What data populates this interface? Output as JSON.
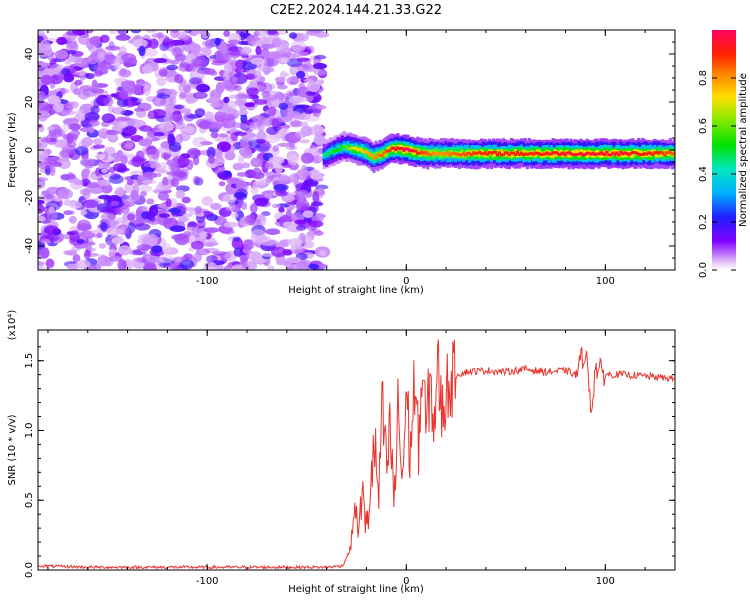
{
  "title": "C2E2.2024.144.21.33.G22",
  "chart_data": [
    {
      "type": "heatmap",
      "xlabel": "Height of straight line (km)",
      "ylabel": "Frequency (Hz)",
      "xlim": [
        -185,
        135
      ],
      "ylim": [
        -50,
        50
      ],
      "xticks": [
        -100,
        0,
        100
      ],
      "yticks": [
        -40,
        -20,
        0,
        20,
        40
      ],
      "colorbar": {
        "label": "Normalized spectral amplitude",
        "range": [
          0,
          1
        ],
        "ticks": [
          0.0,
          0.2,
          0.4,
          0.6,
          0.8
        ]
      },
      "noise_region_x": [
        -185,
        -42
      ],
      "signal_line": {
        "x": [
          -42,
          -38,
          -32,
          -27,
          -22,
          -17,
          -12,
          -8,
          -4,
          0,
          5,
          10,
          15,
          25,
          40,
          60,
          80,
          100,
          120,
          135
        ],
        "frequency": [
          -2.5,
          -0.5,
          1.5,
          0.5,
          -0.5,
          -3,
          -1.5,
          0.5,
          0.5,
          0,
          -1,
          -1.5,
          -1.5,
          -1.5,
          -1.5,
          -1.5,
          -1.5,
          -1.5,
          -1.5,
          -1.5
        ],
        "peak_amplitude": [
          0.45,
          0.5,
          0.55,
          0.7,
          0.75,
          0.8,
          0.85,
          0.9,
          0.95,
          1.0,
          0.9,
          0.85,
          0.8,
          0.85,
          0.9,
          0.9,
          0.95,
          0.95,
          0.92,
          0.85
        ]
      }
    },
    {
      "type": "line",
      "xlabel": "Height of straight line (km)",
      "ylabel": "SNR (10 * v/v)",
      "y_multiplier": "(x10⁴)",
      "xlim": [
        -185,
        135
      ],
      "ylim": [
        0,
        1.72
      ],
      "xticks": [
        -100,
        0,
        100
      ],
      "yticks": [
        0.0,
        0.5,
        1.0,
        1.5
      ],
      "series": [
        {
          "color": "#e8362f",
          "x": [
            -185,
            -160,
            -140,
            -120,
            -100,
            -80,
            -60,
            -40,
            -32,
            -28,
            -26,
            -24,
            -22,
            -20,
            -18,
            -16,
            -14,
            -12,
            -10,
            -8,
            -6,
            -4,
            -2,
            0,
            2,
            4,
            6,
            8,
            10,
            12,
            14,
            16,
            18,
            20,
            25,
            30,
            40,
            50,
            60,
            70,
            80,
            85,
            90,
            93,
            95,
            100,
            110,
            120,
            135
          ],
          "values": [
            0.03,
            0.02,
            0.02,
            0.02,
            0.02,
            0.02,
            0.02,
            0.02,
            0.03,
            0.15,
            0.45,
            0.3,
            0.55,
            0.25,
            0.6,
            0.9,
            0.5,
            1.15,
            0.7,
            1.0,
            0.45,
            1.2,
            0.6,
            1.3,
            0.8,
            1.35,
            0.9,
            1.4,
            1.0,
            1.35,
            1.05,
            1.45,
            1.1,
            1.3,
            1.4,
            1.42,
            1.43,
            1.42,
            1.44,
            1.42,
            1.43,
            1.4,
            1.58,
            1.15,
            1.45,
            1.4,
            1.4,
            1.39,
            1.37
          ]
        }
      ]
    }
  ]
}
